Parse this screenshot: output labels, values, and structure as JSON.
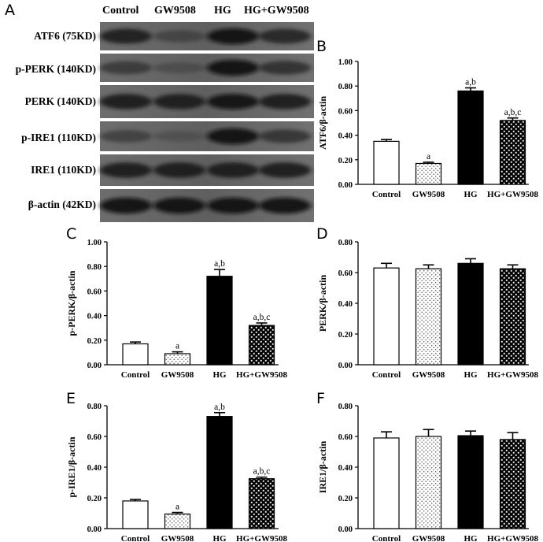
{
  "panels": {
    "A": "A",
    "B": "B",
    "C": "C",
    "D": "D",
    "E": "E",
    "F": "F"
  },
  "blot": {
    "lanes": [
      "Control",
      "GW9508",
      "HG",
      "HG+GW9508"
    ],
    "rows": [
      {
        "label": "ATF6 (75KD)",
        "intensity": [
          0.75,
          0.45,
          0.85,
          0.72
        ]
      },
      {
        "label": "p-PERK (140KD)",
        "intensity": [
          0.55,
          0.35,
          0.85,
          0.62
        ]
      },
      {
        "label": "PERK (140KD)",
        "intensity": [
          0.8,
          0.78,
          0.82,
          0.8
        ]
      },
      {
        "label": "p-IRE1 (110KD)",
        "intensity": [
          0.5,
          0.3,
          0.85,
          0.6
        ]
      },
      {
        "label": "IRE1 (110KD)",
        "intensity": [
          0.8,
          0.8,
          0.8,
          0.8
        ]
      },
      {
        "label": "β-actin (42KD)",
        "intensity": [
          0.85,
          0.85,
          0.85,
          0.85
        ]
      }
    ]
  },
  "chart_data": [
    {
      "panel": "B",
      "type": "bar",
      "categories": [
        "Control",
        "GW9508",
        "HG",
        "HG+GW9508"
      ],
      "values": [
        0.35,
        0.17,
        0.76,
        0.52
      ],
      "errors": [
        0.015,
        0.01,
        0.025,
        0.02
      ],
      "annotations": [
        "",
        "a",
        "a,b",
        "a,b,c"
      ],
      "ylabel": "ATF6/β-actin",
      "ylim": [
        0,
        1.0
      ],
      "yticks": [
        "0.00",
        "0.20",
        "0.40",
        "0.60",
        "0.80",
        "1.00"
      ]
    },
    {
      "panel": "C",
      "type": "bar",
      "categories": [
        "Control",
        "GW9508",
        "HG",
        "HG+GW9508"
      ],
      "values": [
        0.17,
        0.09,
        0.72,
        0.32
      ],
      "errors": [
        0.015,
        0.015,
        0.055,
        0.02
      ],
      "annotations": [
        "",
        "a",
        "a,b",
        "a,b,c"
      ],
      "ylabel": "p-PERK/β-actin",
      "ylim": [
        0,
        1.0
      ],
      "yticks": [
        "0.00",
        "0.20",
        "0.40",
        "0.60",
        "0.80",
        "1.00"
      ]
    },
    {
      "panel": "D",
      "type": "bar",
      "categories": [
        "Control",
        "GW9508",
        "HG",
        "HG+GW9508"
      ],
      "values": [
        0.63,
        0.625,
        0.66,
        0.625
      ],
      "errors": [
        0.03,
        0.025,
        0.03,
        0.025
      ],
      "annotations": [
        "",
        "",
        "",
        ""
      ],
      "ylabel": "PERK/β-actin",
      "ylim": [
        0,
        0.8
      ],
      "yticks": [
        "0.00",
        "0.20",
        "0.40",
        "0.60",
        "0.80"
      ]
    },
    {
      "panel": "E",
      "type": "bar",
      "categories": [
        "Control",
        "GW9508",
        "HG",
        "HG+GW9508"
      ],
      "values": [
        0.18,
        0.095,
        0.73,
        0.325
      ],
      "errors": [
        0.01,
        0.01,
        0.025,
        0.01
      ],
      "annotations": [
        "",
        "a",
        "a,b",
        "a,b,c"
      ],
      "ylabel": "p-IRE1/β-actin",
      "ylim": [
        0,
        0.8
      ],
      "yticks": [
        "0.00",
        "0.20",
        "0.40",
        "0.60",
        "0.80"
      ]
    },
    {
      "panel": "F",
      "type": "bar",
      "categories": [
        "Control",
        "GW9508",
        "HG",
        "HG+GW9508"
      ],
      "values": [
        0.59,
        0.6,
        0.605,
        0.58
      ],
      "errors": [
        0.04,
        0.045,
        0.03,
        0.045
      ],
      "annotations": [
        "",
        "",
        "",
        ""
      ],
      "ylabel": "IRE1/β-actin",
      "ylim": [
        0,
        0.8
      ],
      "yticks": [
        "0.00",
        "0.20",
        "0.40",
        "0.60",
        "0.80"
      ]
    }
  ]
}
